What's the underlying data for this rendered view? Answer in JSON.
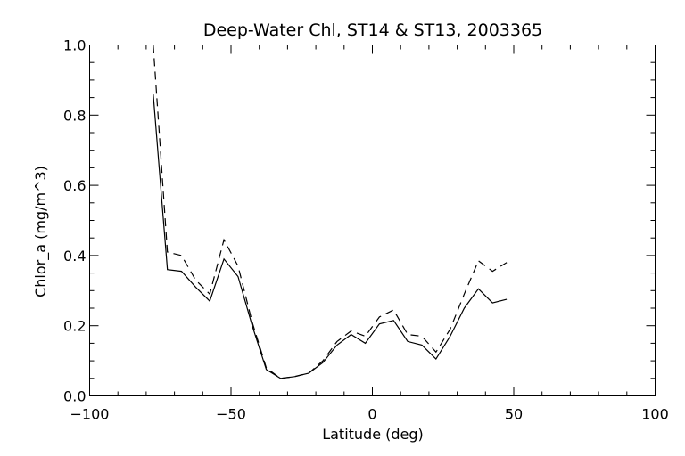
{
  "chart_data": {
    "type": "line",
    "title": "Deep-Water Chl, ST14 & ST13, 2003365",
    "xlabel": "Latitude (deg)",
    "ylabel": "Chlor_a (mg/m^3)",
    "xlim": [
      -100,
      100
    ],
    "ylim": [
      0.0,
      1.0
    ],
    "xticks": [
      -100,
      -50,
      0,
      50,
      100
    ],
    "xtick_labels": [
      "−100",
      "−50",
      "0",
      "50",
      "100"
    ],
    "yticks": [
      0.0,
      0.2,
      0.4,
      0.6,
      0.8,
      1.0
    ],
    "ytick_labels": [
      "0.0",
      "0.2",
      "0.4",
      "0.6",
      "0.8",
      "1.0"
    ],
    "grid": false,
    "legend": "none",
    "series": [
      {
        "style": "solid",
        "x": [
          -77.5,
          -72.5,
          -67.5,
          -62.5,
          -57.5,
          -52.5,
          -47.5,
          -42.5,
          -37.5,
          -32.5,
          -27.5,
          -22.5,
          -17.5,
          -12.5,
          -7.5,
          -2.5,
          2.5,
          7.5,
          12.5,
          17.5,
          22.5,
          27.5,
          32.5,
          37.5,
          42.5,
          47.5
        ],
        "y": [
          0.86,
          0.36,
          0.355,
          0.31,
          0.27,
          0.39,
          0.34,
          0.2,
          0.075,
          0.05,
          0.055,
          0.065,
          0.095,
          0.145,
          0.175,
          0.15,
          0.205,
          0.215,
          0.155,
          0.145,
          0.105,
          0.17,
          0.25,
          0.305,
          0.265,
          0.275
        ]
      },
      {
        "style": "dashed",
        "x": [
          -77.5,
          -72.5,
          -67.5,
          -62.5,
          -57.5,
          -52.5,
          -47.5,
          -42.5,
          -37.5,
          -32.5,
          -27.5,
          -22.5,
          -17.5,
          -12.5,
          -7.5,
          -2.5,
          2.5,
          7.5,
          12.5,
          17.5,
          22.5,
          27.5,
          32.5,
          37.5,
          42.5,
          47.5
        ],
        "y": [
          1.0,
          0.41,
          0.4,
          0.33,
          0.29,
          0.445,
          0.37,
          0.21,
          0.08,
          0.05,
          0.055,
          0.065,
          0.1,
          0.155,
          0.185,
          0.17,
          0.225,
          0.245,
          0.175,
          0.17,
          0.125,
          0.19,
          0.29,
          0.385,
          0.355,
          0.38
        ]
      }
    ]
  }
}
